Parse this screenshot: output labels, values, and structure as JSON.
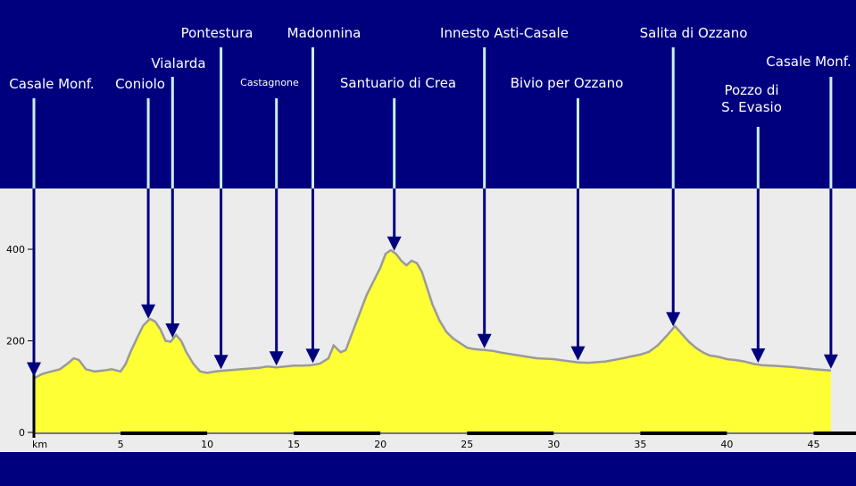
{
  "chart_data": {
    "type": "area",
    "xlabel": "km",
    "x_ticks": [
      5,
      10,
      15,
      20,
      25,
      30,
      35,
      40,
      45
    ],
    "y_ticks": [
      0,
      200,
      400
    ],
    "xlim": [
      0,
      46
    ],
    "ylim": [
      0,
      530
    ],
    "colors": {
      "background": "#00007f",
      "plot_bg": "#ececec",
      "fill": "#ffff36",
      "outline": "#9a9a9a",
      "arrow": "#00007f",
      "label_line": "#c8f0f0",
      "label_text": "#ffffff"
    },
    "profile": {
      "x": [
        0,
        0.5,
        1,
        1.5,
        2,
        2.3,
        2.6,
        3,
        3.5,
        4,
        4.5,
        5,
        5.3,
        5.6,
        6,
        6.3,
        6.7,
        7,
        7.3,
        7.6,
        7.9,
        8.2,
        8.5,
        8.8,
        9.2,
        9.6,
        10,
        10.5,
        11,
        12,
        13,
        13.5,
        14,
        14.5,
        15,
        15.5,
        16,
        16.5,
        17,
        17.3,
        17.7,
        18,
        18.4,
        18.8,
        19.2,
        19.6,
        20,
        20.3,
        20.6,
        20.9,
        21.2,
        21.5,
        21.8,
        22.1,
        22.4,
        22.7,
        23,
        23.4,
        23.8,
        24.2,
        24.6,
        25,
        25.4,
        26,
        26.5,
        27,
        28,
        29,
        30,
        31,
        31.4,
        32,
        33,
        34,
        34.5,
        35,
        35.5,
        36,
        36.5,
        37,
        37.4,
        37.8,
        38.2,
        38.6,
        39,
        39.5,
        40,
        40.5,
        41,
        41.5,
        42,
        43,
        44,
        45,
        46
      ],
      "y": [
        118,
        128,
        133,
        138,
        152,
        162,
        158,
        138,
        133,
        135,
        138,
        133,
        150,
        178,
        210,
        233,
        248,
        242,
        225,
        200,
        198,
        213,
        200,
        175,
        150,
        133,
        130,
        133,
        135,
        138,
        141,
        144,
        142,
        144,
        146,
        146,
        147,
        150,
        162,
        190,
        175,
        180,
        220,
        260,
        300,
        330,
        360,
        390,
        398,
        390,
        375,
        365,
        375,
        370,
        350,
        315,
        280,
        245,
        220,
        205,
        195,
        185,
        182,
        180,
        178,
        174,
        168,
        162,
        160,
        155,
        153,
        152,
        155,
        162,
        166,
        170,
        176,
        190,
        210,
        232,
        215,
        198,
        185,
        175,
        168,
        165,
        160,
        158,
        155,
        150,
        147,
        145,
        142,
        138,
        135
      ]
    },
    "annotations": [
      {
        "text": "Casale Monf.",
        "x": 0
      },
      {
        "text": "Coniolo",
        "x": 6.6
      },
      {
        "text": "Vialarda",
        "x": 8.0
      },
      {
        "text": "Pontestura",
        "x": 10.8
      },
      {
        "text": "Castagnone",
        "x": 14.0
      },
      {
        "text": "Madonnina",
        "x": 16.1
      },
      {
        "text": "Santuario di Crea",
        "x": 20.8
      },
      {
        "text": "Innesto Asti-Casale",
        "x": 26.0
      },
      {
        "text": "Bivio per Ozzano",
        "x": 31.4
      },
      {
        "text": "Salita di Ozzano",
        "x": 36.9
      },
      {
        "text": "Pozzo di S. Evasio",
        "x": 41.8
      },
      {
        "text": "Casale Monf.",
        "x": 46.0
      }
    ]
  }
}
